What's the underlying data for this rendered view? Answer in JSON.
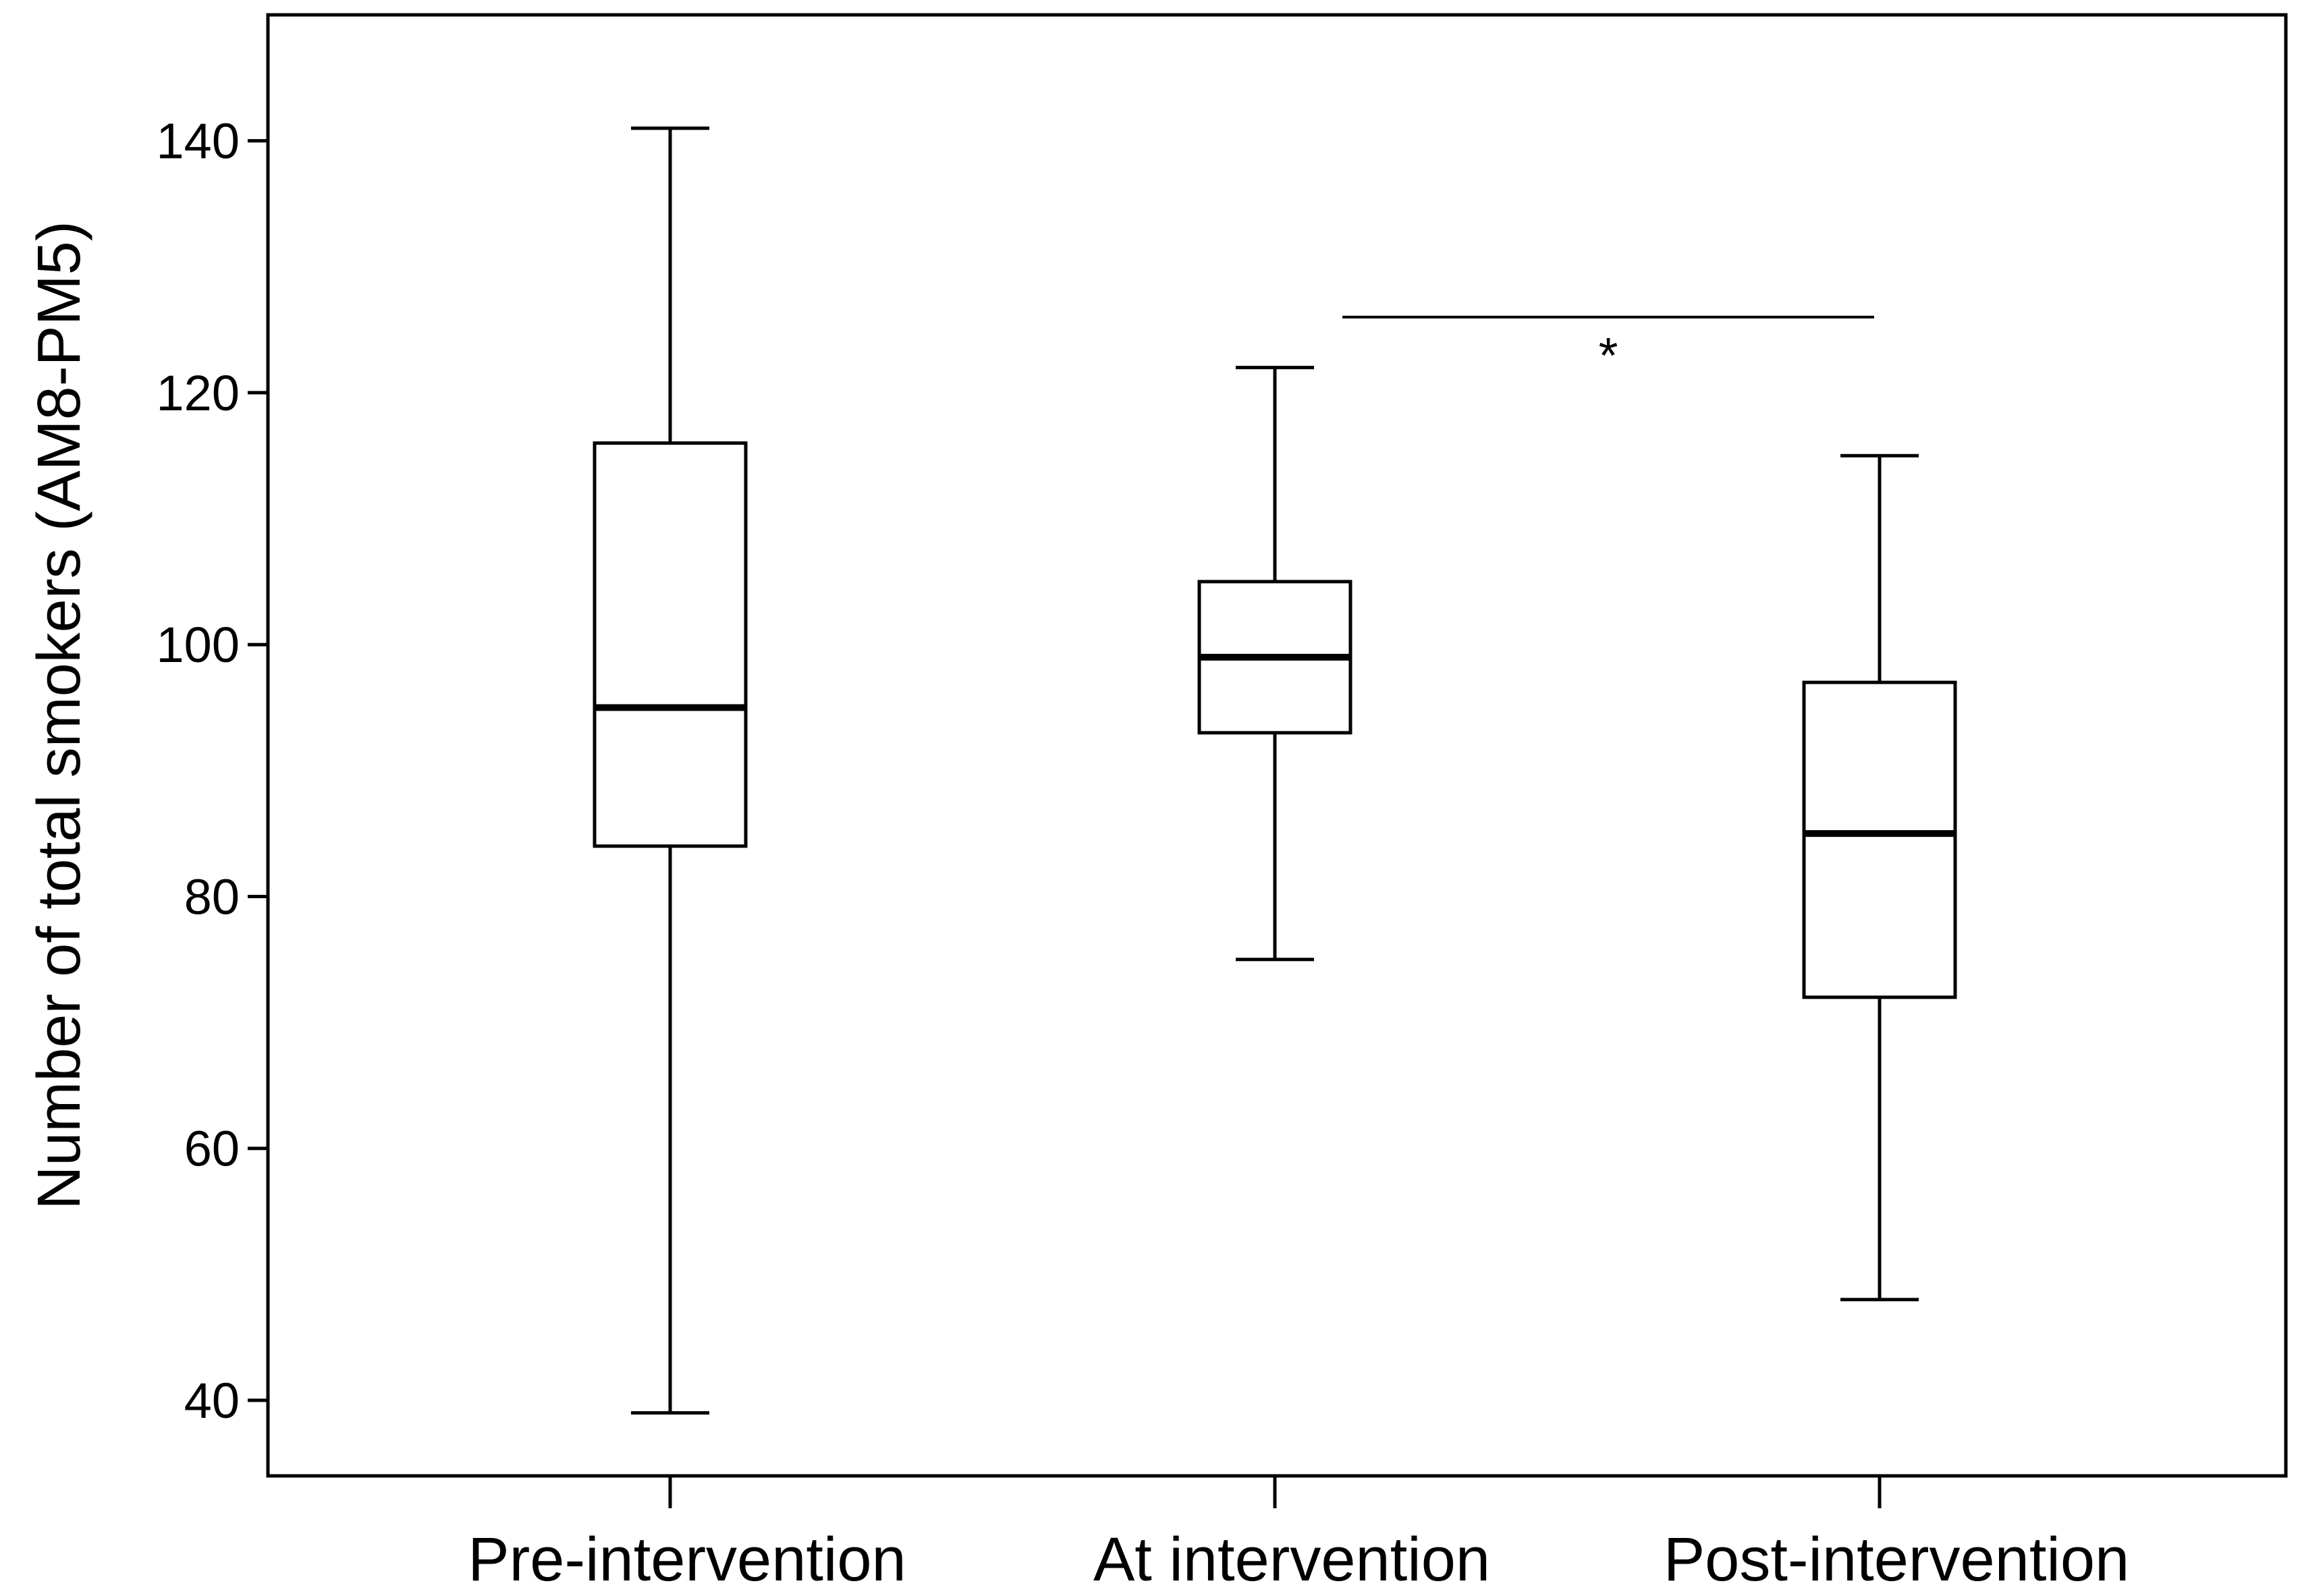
{
  "chart_data": {
    "type": "box",
    "title": "",
    "xlabel": "",
    "ylabel": "Number of total smokers (AM8-PM5)",
    "ylim": [
      34,
      150
    ],
    "yticks": [
      40,
      60,
      80,
      100,
      120,
      140
    ],
    "categories": [
      "Pre-intervention",
      "At intervention",
      "Post-intervention"
    ],
    "boxes": [
      {
        "category": "Pre-intervention",
        "min": 39,
        "q1": 84,
        "median": 95,
        "q3": 116,
        "max": 141
      },
      {
        "category": "At intervention",
        "min": 75,
        "q1": 93,
        "median": 99,
        "q3": 105,
        "max": 122
      },
      {
        "category": "Post-intervention",
        "min": 48,
        "q1": 72,
        "median": 85,
        "q3": 97,
        "max": 115
      }
    ],
    "annotations": [
      {
        "text": "*",
        "from_category": "At intervention",
        "to_category": "Post-intervention",
        "y": 126
      }
    ],
    "grid": false,
    "legend": "none"
  }
}
